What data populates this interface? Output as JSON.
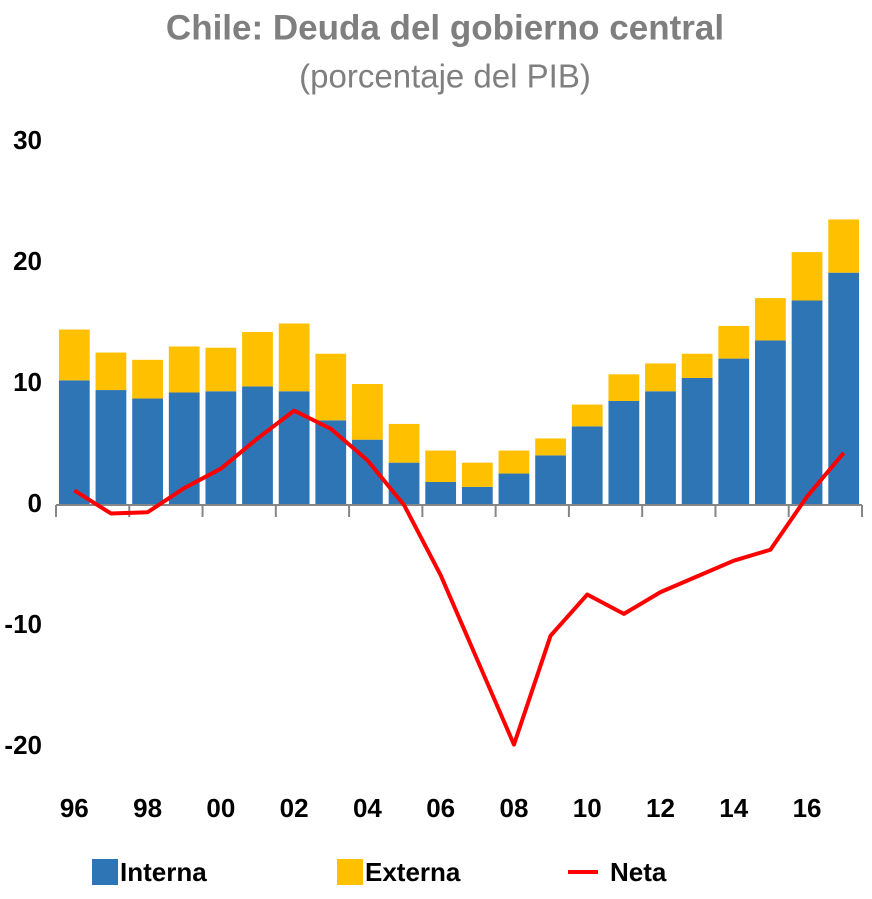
{
  "chart_data": {
    "type": "bar",
    "stacked": true,
    "title": "Chile: Deuda del gobierno central",
    "subtitle": "(porcentaje del PIB)",
    "categories": [
      "96",
      null,
      "98",
      null,
      "00",
      null,
      "02",
      null,
      "04",
      null,
      "06",
      null,
      "08",
      null,
      "10",
      null,
      "12",
      null,
      "14",
      null,
      "16",
      null
    ],
    "series": [
      {
        "name": "Interna",
        "type": "bar",
        "color": "#2e75b6",
        "values": [
          10.3,
          9.5,
          8.8,
          9.3,
          9.4,
          9.8,
          9.4,
          7.0,
          5.4,
          3.5,
          1.9,
          1.5,
          2.6,
          4.1,
          6.5,
          8.6,
          9.4,
          10.5,
          12.1,
          13.6,
          16.9,
          19.2
        ]
      },
      {
        "name": "Externa",
        "type": "bar",
        "color": "#ffc000",
        "values": [
          4.2,
          3.1,
          3.2,
          3.8,
          3.6,
          4.5,
          5.6,
          5.5,
          4.6,
          3.2,
          2.6,
          2.0,
          1.9,
          1.4,
          1.8,
          2.2,
          2.3,
          2.0,
          2.7,
          3.5,
          4.0,
          4.4
        ]
      },
      {
        "name": "Neta",
        "type": "line",
        "color": "#ff0000",
        "values": [
          1.2,
          -0.7,
          -0.6,
          1.4,
          3.0,
          5.5,
          7.8,
          6.3,
          3.7,
          0,
          -5.8,
          -12.8,
          -19.8,
          -10.8,
          -7.4,
          -9.0,
          -7.2,
          -5.9,
          -4.6,
          -3.7,
          0.7,
          4.3
        ]
      }
    ],
    "ylim": [
      -20,
      30
    ],
    "yticks": [
      {
        "value": -20,
        "label": "-20"
      },
      {
        "value": -10,
        "label": "-10"
      },
      0,
      10,
      20,
      30
    ],
    "legend": "bottom"
  }
}
